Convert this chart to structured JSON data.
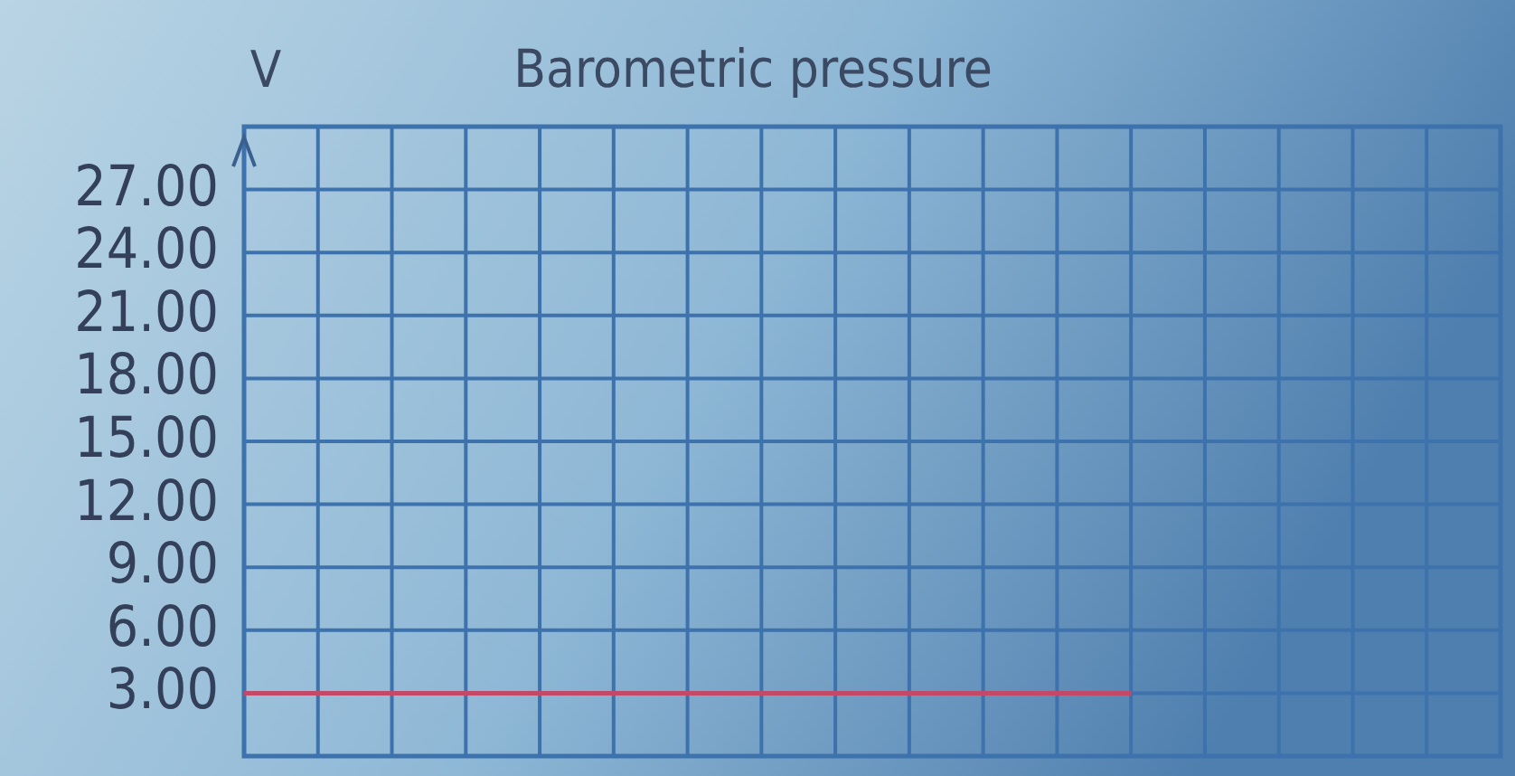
{
  "chart_data": {
    "type": "line",
    "title": "Barometric pressure",
    "ylabel": "V",
    "categories": [
      null,
      null,
      null,
      null,
      null,
      null,
      null,
      null,
      null,
      null,
      null,
      null,
      null,
      null,
      null,
      null,
      null,
      null
    ],
    "series": [
      {
        "color": "#c24a68",
        "values": [
          3,
          3,
          3,
          3,
          3,
          3,
          3,
          3,
          3,
          3,
          3,
          3,
          3,
          null,
          null,
          null,
          null,
          null
        ]
      }
    ],
    "ylim": [
      0,
      30
    ],
    "yticks": [
      {
        "value": 3,
        "label": "3.00"
      },
      {
        "value": 6,
        "label": "6.00"
      },
      {
        "value": 9,
        "label": "9.00"
      },
      {
        "value": 12,
        "label": "12.00"
      },
      {
        "value": 15,
        "label": "15.00"
      },
      {
        "value": 18,
        "label": "18.00"
      },
      {
        "value": 21,
        "label": "21.00"
      },
      {
        "value": 24,
        "label": "24.00"
      },
      {
        "value": 27,
        "label": "27.00"
      }
    ],
    "grid": true,
    "tick_labels": "y",
    "marker": "none",
    "line_style": "solid"
  }
}
